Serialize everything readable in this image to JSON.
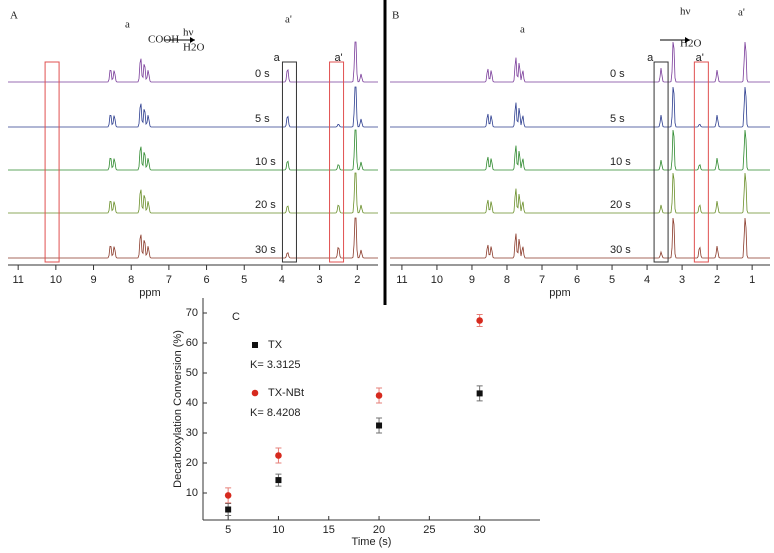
{
  "spectra_panels": [
    {
      "label": "A",
      "xlabel": "ppm",
      "xlim": [
        11.27,
        1.45
      ],
      "xticks": [
        11,
        10,
        9,
        8,
        7,
        6,
        5,
        4,
        3,
        2
      ],
      "times": [
        "0 s",
        "5 s",
        "10 s",
        "20 s",
        "30 s"
      ],
      "peak_labels": [
        "a",
        "a'"
      ],
      "scheme": [
        "a",
        "COOH",
        "hν",
        "H2O",
        "a'"
      ]
    },
    {
      "label": "B",
      "xlabel": "ppm",
      "xlim": [
        11.34,
        0.49
      ],
      "xticks": [
        11,
        10,
        9,
        8,
        7,
        6,
        5,
        4,
        3,
        2,
        1
      ],
      "times": [
        "0 s",
        "5 s",
        "10 s",
        "20 s",
        "30 s"
      ],
      "peak_labels": [
        "a",
        "a'"
      ],
      "scheme": [
        "a",
        "hν",
        "H2O",
        "a'"
      ]
    }
  ],
  "chart_data": {
    "type": "scatter",
    "panel_label": "C",
    "xlabel": "Time (s)",
    "ylabel": "Decarboxylation Conversion (%)",
    "x": [
      5,
      10,
      20,
      30
    ],
    "series": [
      {
        "name": "TX",
        "color": "#111111",
        "marker": "square",
        "values": [
          4.5,
          14.3,
          32.5,
          43.2
        ],
        "errors": [
          2,
          2,
          2.5,
          2.5
        ],
        "annotation": "K= 3.3125"
      },
      {
        "name": "TX-NBt",
        "color": "#d62a1e",
        "marker": "circle",
        "values": [
          9.2,
          22.5,
          42.5,
          67.5
        ],
        "errors": [
          2.5,
          2.5,
          2.5,
          2
        ],
        "annotation": "K= 8.4208"
      }
    ],
    "xlim": [
      2.5,
      36
    ],
    "ylim": [
      1,
      75
    ],
    "xticks": [
      5,
      10,
      15,
      20,
      25,
      30
    ],
    "yticks": [
      10,
      20,
      30,
      40,
      50,
      60,
      70
    ]
  }
}
